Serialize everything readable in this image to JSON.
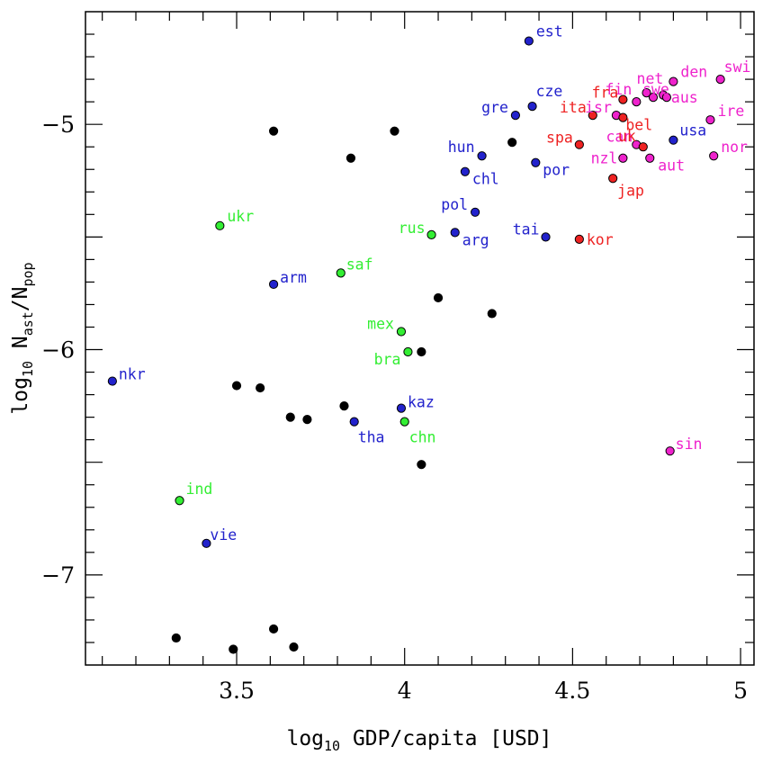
{
  "chart_data": {
    "type": "scatter",
    "title": "",
    "xlabel": {
      "prefix": "log",
      "sub": "10",
      "rest": " GDP/capita [USD]"
    },
    "ylabel": {
      "prefix": "log",
      "sub": "10",
      "n1": " N",
      "sub1": "ast",
      "mid": "/N",
      "sub2": "pop"
    },
    "xlim": [
      3.05,
      5.04
    ],
    "ylim": [
      -7.4,
      -4.5
    ],
    "x_ticks": [
      {
        "value": 3.5,
        "label": "3.5"
      },
      {
        "value": 4.0,
        "label": "4"
      },
      {
        "value": 4.5,
        "label": "4.5"
      },
      {
        "value": 5.0,
        "label": "5"
      }
    ],
    "y_ticks": [
      {
        "value": -5,
        "label": "−5"
      },
      {
        "value": -6,
        "label": "−6"
      },
      {
        "value": -7,
        "label": "−7"
      }
    ],
    "grid": false,
    "groups": {
      "black": "#000000",
      "green": "#33ee33",
      "blue": "#2222cc",
      "red": "#ee2222",
      "magenta": "#ee22cc"
    },
    "points": [
      {
        "x": 4.37,
        "y": -4.63,
        "label": "est",
        "group": "blue"
      },
      {
        "x": 4.8,
        "y": -4.81,
        "label": "den",
        "group": "magenta"
      },
      {
        "x": 4.94,
        "y": -4.8,
        "label": "swi",
        "group": "magenta"
      },
      {
        "x": 4.72,
        "y": -4.86,
        "label": "net",
        "group": "magenta"
      },
      {
        "x": 4.74,
        "y": -4.88,
        "label": "swe",
        "group": "magenta"
      },
      {
        "x": 4.77,
        "y": -4.87,
        "label": "",
        "group": "magenta"
      },
      {
        "x": 4.78,
        "y": -4.88,
        "label": "aus",
        "group": "magenta"
      },
      {
        "x": 4.69,
        "y": -4.9,
        "label": "fin",
        "group": "magenta"
      },
      {
        "x": 4.65,
        "y": -4.89,
        "label": "fra",
        "group": "red"
      },
      {
        "x": 4.38,
        "y": -4.92,
        "label": "cze",
        "group": "blue"
      },
      {
        "x": 4.33,
        "y": -4.96,
        "label": "gre",
        "group": "blue"
      },
      {
        "x": 4.56,
        "y": -4.96,
        "label": "ita",
        "group": "red"
      },
      {
        "x": 4.63,
        "y": -4.96,
        "label": "isr",
        "group": "magenta"
      },
      {
        "x": 4.65,
        "y": -4.97,
        "label": "bel",
        "group": "red"
      },
      {
        "x": 4.91,
        "y": -4.98,
        "label": "ire",
        "group": "magenta"
      },
      {
        "x": 3.61,
        "y": -5.03,
        "label": "",
        "group": "black"
      },
      {
        "x": 3.97,
        "y": -5.03,
        "label": "",
        "group": "black"
      },
      {
        "x": 4.32,
        "y": -5.08,
        "label": "",
        "group": "black"
      },
      {
        "x": 4.8,
        "y": -5.07,
        "label": "usa",
        "group": "blue"
      },
      {
        "x": 4.52,
        "y": -5.09,
        "label": "spa",
        "group": "red"
      },
      {
        "x": 4.69,
        "y": -5.09,
        "label": "can",
        "group": "magenta"
      },
      {
        "x": 4.71,
        "y": -5.1,
        "label": "uk",
        "group": "red"
      },
      {
        "x": 4.23,
        "y": -5.14,
        "label": "hun",
        "group": "blue"
      },
      {
        "x": 3.84,
        "y": -5.15,
        "label": "",
        "group": "black"
      },
      {
        "x": 4.65,
        "y": -5.15,
        "label": "nzl",
        "group": "magenta"
      },
      {
        "x": 4.73,
        "y": -5.15,
        "label": "aut",
        "group": "magenta"
      },
      {
        "x": 4.92,
        "y": -5.14,
        "label": "nor",
        "group": "magenta"
      },
      {
        "x": 4.39,
        "y": -5.17,
        "label": "por",
        "group": "blue"
      },
      {
        "x": 4.18,
        "y": -5.21,
        "label": "chl",
        "group": "blue"
      },
      {
        "x": 4.62,
        "y": -5.24,
        "label": "jap",
        "group": "red"
      },
      {
        "x": 4.21,
        "y": -5.39,
        "label": "pol",
        "group": "blue"
      },
      {
        "x": 3.45,
        "y": -5.45,
        "label": "ukr",
        "group": "green"
      },
      {
        "x": 4.08,
        "y": -5.49,
        "label": "rus",
        "group": "green"
      },
      {
        "x": 4.15,
        "y": -5.48,
        "label": "arg",
        "group": "blue"
      },
      {
        "x": 4.42,
        "y": -5.5,
        "label": "tai",
        "group": "blue"
      },
      {
        "x": 4.52,
        "y": -5.51,
        "label": "kor",
        "group": "red"
      },
      {
        "x": 3.81,
        "y": -5.66,
        "label": "saf",
        "group": "green"
      },
      {
        "x": 3.61,
        "y": -5.71,
        "label": "arm",
        "group": "blue"
      },
      {
        "x": 4.1,
        "y": -5.77,
        "label": "",
        "group": "black"
      },
      {
        "x": 4.26,
        "y": -5.84,
        "label": "",
        "group": "black"
      },
      {
        "x": 3.99,
        "y": -5.92,
        "label": "mex",
        "group": "green"
      },
      {
        "x": 4.01,
        "y": -6.01,
        "label": "bra",
        "group": "green"
      },
      {
        "x": 4.05,
        "y": -6.01,
        "label": "",
        "group": "black"
      },
      {
        "x": 3.13,
        "y": -6.14,
        "label": "nkr",
        "group": "blue"
      },
      {
        "x": 3.5,
        "y": -6.16,
        "label": "",
        "group": "black"
      },
      {
        "x": 3.57,
        "y": -6.17,
        "label": "",
        "group": "black"
      },
      {
        "x": 3.82,
        "y": -6.25,
        "label": "",
        "group": "black"
      },
      {
        "x": 3.99,
        "y": -6.26,
        "label": "kaz",
        "group": "blue"
      },
      {
        "x": 3.66,
        "y": -6.3,
        "label": "",
        "group": "black"
      },
      {
        "x": 3.71,
        "y": -6.31,
        "label": "",
        "group": "black"
      },
      {
        "x": 3.85,
        "y": -6.32,
        "label": "tha",
        "group": "blue"
      },
      {
        "x": 4.0,
        "y": -6.32,
        "label": "chn",
        "group": "green"
      },
      {
        "x": 4.79,
        "y": -6.45,
        "label": "sin",
        "group": "magenta"
      },
      {
        "x": 4.05,
        "y": -6.51,
        "label": "",
        "group": "black"
      },
      {
        "x": 3.33,
        "y": -6.67,
        "label": "ind",
        "group": "green"
      },
      {
        "x": 3.41,
        "y": -6.86,
        "label": "vie",
        "group": "blue"
      },
      {
        "x": 3.32,
        "y": -7.28,
        "label": "",
        "group": "black"
      },
      {
        "x": 3.61,
        "y": -7.24,
        "label": "",
        "group": "black"
      },
      {
        "x": 3.49,
        "y": -7.33,
        "label": "",
        "group": "black"
      },
      {
        "x": 3.67,
        "y": -7.32,
        "label": "",
        "group": "black"
      }
    ]
  }
}
